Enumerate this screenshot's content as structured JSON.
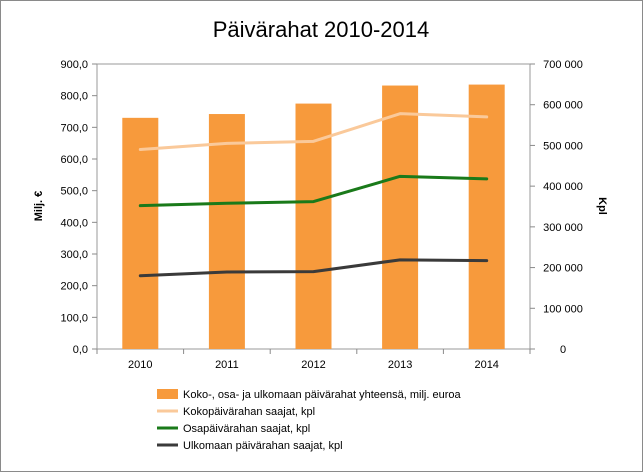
{
  "chart_data": {
    "type": "bar+line",
    "title": "Päivärahat 2010-2014",
    "categories": [
      "2010",
      "2011",
      "2012",
      "2013",
      "2014"
    ],
    "left_axis": {
      "label": "Milj. €",
      "range": [
        0,
        900
      ],
      "ticks": [
        "0,0",
        "100,0",
        "200,0",
        "300,0",
        "400,0",
        "500,0",
        "600,0",
        "700,0",
        "800,0",
        "900,0"
      ]
    },
    "right_axis": {
      "label": "Kpl",
      "range": [
        0,
        700000
      ],
      "ticks": [
        "0",
        "100 000",
        "200 000",
        "300 000",
        "400 000",
        "500 000",
        "600 000",
        "700 000"
      ]
    },
    "gridlines": false,
    "legend_position": "bottom",
    "series": [
      {
        "name": "Koko-, osa- ja ulkomaan päivärahat yhteensä, milj. euroa",
        "type": "bar",
        "axis": "left",
        "color": "#F79A3C",
        "values": [
          730,
          742,
          775,
          832,
          835
        ]
      },
      {
        "name": "Kokopäivärahan saajat, kpl",
        "type": "line",
        "axis": "right",
        "color": "#FAC99A",
        "values": [
          490000,
          505000,
          510000,
          578000,
          570000
        ]
      },
      {
        "name": "Osapäivärahan saajat, kpl",
        "type": "line",
        "axis": "right",
        "color": "#1A7A1A",
        "values": [
          352000,
          358000,
          362000,
          424000,
          418000
        ]
      },
      {
        "name": "Ulkomaan päivärahan saajat, kpl",
        "type": "line",
        "axis": "right",
        "color": "#3A3A3A",
        "values": [
          180000,
          189000,
          190000,
          219000,
          217000
        ]
      }
    ]
  }
}
